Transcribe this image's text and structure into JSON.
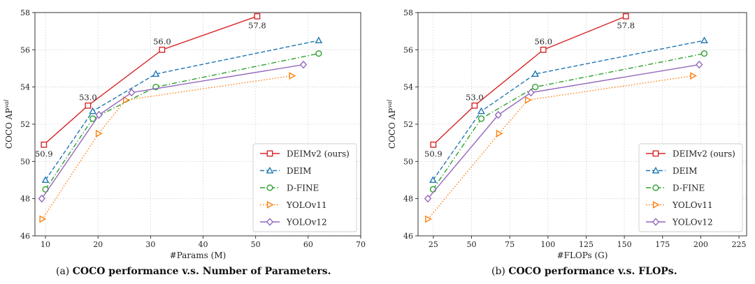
{
  "captions": [
    {
      "prefix": "(a) ",
      "text": "COCO performance v.s. Number of Parameters."
    },
    {
      "prefix": "(b) ",
      "text": "COCO performance v.s. FLOPs."
    }
  ],
  "chart_data": [
    {
      "type": "line",
      "xlabel": "#Params (M)",
      "ylabel": "COCO AP",
      "ylabel_sup": "val",
      "xlim": [
        8,
        70
      ],
      "ylim": [
        46,
        58
      ],
      "xticks": [
        10,
        20,
        30,
        40,
        50,
        60,
        70
      ],
      "yticks": [
        46,
        48,
        50,
        52,
        54,
        56,
        58
      ],
      "grid": true,
      "legend_position": "lower-right",
      "series": [
        {
          "name": "DEIMv2 (ours)",
          "color": "#d62728",
          "dash": "solid",
          "marker": "square",
          "x": [
            9.7,
            18.1,
            32.2,
            50.3
          ],
          "y": [
            50.9,
            53.0,
            56.0,
            57.8
          ]
        },
        {
          "name": "DEIM",
          "color": "#1f77b4",
          "dash": "dashed",
          "marker": "triangle-up",
          "x": [
            10,
            19,
            31,
            62
          ],
          "y": [
            49.0,
            52.7,
            54.7,
            56.5
          ]
        },
        {
          "name": "D-FINE",
          "color": "#2ca02c",
          "dash": "dashdot",
          "marker": "circle",
          "x": [
            10,
            19,
            31,
            62
          ],
          "y": [
            48.5,
            52.3,
            54.0,
            55.8
          ]
        },
        {
          "name": "YOLOv11",
          "color": "#ff7f0e",
          "dash": "dotted",
          "marker": "triangle-right",
          "x": [
            9.4,
            20.1,
            25.3,
            56.9
          ],
          "y": [
            46.9,
            51.5,
            53.3,
            54.6
          ]
        },
        {
          "name": "YOLOv12",
          "color": "#9467bd",
          "dash": "solid",
          "marker": "diamond",
          "x": [
            9.3,
            20.2,
            26.4,
            59.1
          ],
          "y": [
            48.0,
            52.5,
            53.7,
            55.2
          ]
        }
      ],
      "annotations": [
        {
          "text": "50.9",
          "x": 9.7,
          "y": 50.9,
          "pos": "below"
        },
        {
          "text": "53.0",
          "x": 18.1,
          "y": 53.0,
          "pos": "above"
        },
        {
          "text": "56.0",
          "x": 32.2,
          "y": 56.0,
          "pos": "above"
        },
        {
          "text": "57.8",
          "x": 50.3,
          "y": 57.8,
          "pos": "below"
        }
      ]
    },
    {
      "type": "line",
      "xlabel": "#FLOPs (G)",
      "ylabel": "COCO AP",
      "ylabel_sup": "val",
      "xlim": [
        15,
        230
      ],
      "ylim": [
        46,
        58
      ],
      "xticks": [
        25,
        50,
        75,
        100,
        125,
        150,
        175,
        200,
        225
      ],
      "yticks": [
        46,
        48,
        50,
        52,
        54,
        56,
        58
      ],
      "grid": true,
      "legend_position": "lower-right",
      "series": [
        {
          "name": "DEIMv2 (ours)",
          "color": "#d62728",
          "dash": "solid",
          "marker": "square",
          "x": [
            25,
            52,
            97,
            151
          ],
          "y": [
            50.9,
            53.0,
            56.0,
            57.8
          ]
        },
        {
          "name": "DEIM",
          "color": "#1f77b4",
          "dash": "dashed",
          "marker": "triangle-up",
          "x": [
            24.8,
            56.4,
            91.7,
            202.3
          ],
          "y": [
            49.0,
            52.7,
            54.7,
            56.5
          ]
        },
        {
          "name": "D-FINE",
          "color": "#2ca02c",
          "dash": "dashdot",
          "marker": "circle",
          "x": [
            24.8,
            56.4,
            91.7,
            202.3
          ],
          "y": [
            48.5,
            52.3,
            54.0,
            55.8
          ]
        },
        {
          "name": "YOLOv11",
          "color": "#ff7f0e",
          "dash": "dotted",
          "marker": "triangle-right",
          "x": [
            21.5,
            68.0,
            86.9,
            194.9
          ],
          "y": [
            46.9,
            51.5,
            53.3,
            54.6
          ]
        },
        {
          "name": "YOLOv12",
          "color": "#9467bd",
          "dash": "solid",
          "marker": "diamond",
          "x": [
            21.4,
            67.5,
            88.9,
            199.0
          ],
          "y": [
            48.0,
            52.5,
            53.7,
            55.2
          ]
        }
      ],
      "annotations": [
        {
          "text": "50.9",
          "x": 25,
          "y": 50.9,
          "pos": "below"
        },
        {
          "text": "53.0",
          "x": 52,
          "y": 53.0,
          "pos": "above"
        },
        {
          "text": "56.0",
          "x": 97,
          "y": 56.0,
          "pos": "above"
        },
        {
          "text": "57.8",
          "x": 151,
          "y": 57.8,
          "pos": "below"
        }
      ]
    }
  ]
}
